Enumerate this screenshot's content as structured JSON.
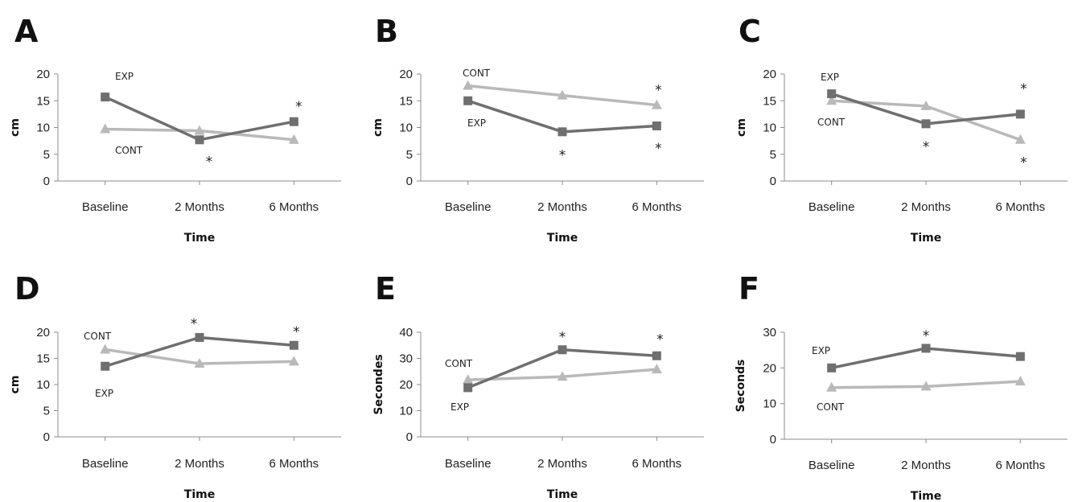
{
  "colors": {
    "EXP": "#6f6f6f",
    "CONT": "#b9b9b9",
    "axis": "#8c8c8c"
  },
  "chart_data": [
    {
      "panel": "A",
      "type": "line",
      "categories": [
        "Baseline",
        "2 Months",
        "6 Months"
      ],
      "xlabel": "Time",
      "ylabel": "cm",
      "ylim": [
        0,
        20
      ],
      "yticks": [
        0,
        5,
        10,
        15,
        20
      ],
      "grid": false,
      "series": [
        {
          "name": "EXP",
          "marker": "square",
          "values": [
            15.7,
            7.7,
            11.1
          ]
        },
        {
          "name": "CONT",
          "marker": "triangle",
          "values": [
            9.7,
            9.4,
            7.7
          ]
        }
      ],
      "annotations": [
        {
          "text": "*",
          "category": "2 Months",
          "y": 4.0
        },
        {
          "text": "*",
          "category": "6 Months",
          "y": 14.3
        }
      ]
    },
    {
      "panel": "B",
      "type": "line",
      "categories": [
        "Baseline",
        "2 Months",
        "6 Months"
      ],
      "xlabel": "Time",
      "ylabel": "cm",
      "ylim": [
        0,
        20
      ],
      "yticks": [
        0,
        5,
        10,
        15,
        20
      ],
      "grid": false,
      "series": [
        {
          "name": "EXP",
          "marker": "square",
          "values": [
            15.0,
            9.2,
            10.3
          ]
        },
        {
          "name": "CONT",
          "marker": "triangle",
          "values": [
            17.8,
            16.0,
            14.2
          ]
        }
      ],
      "annotations": [
        {
          "text": "*",
          "category": "2 Months",
          "y": 5.2
        },
        {
          "text": "*",
          "category": "6 Months",
          "y": 6.5
        },
        {
          "text": "*",
          "category": "6 Months",
          "y": 17.4
        }
      ]
    },
    {
      "panel": "C",
      "type": "line",
      "categories": [
        "Baseline",
        "2 Months",
        "6 Months"
      ],
      "xlabel": "Time",
      "ylabel": "cm",
      "ylim": [
        0,
        20
      ],
      "yticks": [
        0,
        5,
        10,
        15,
        20
      ],
      "grid": false,
      "series": [
        {
          "name": "EXP",
          "marker": "square",
          "values": [
            16.3,
            10.7,
            12.5
          ]
        },
        {
          "name": "CONT",
          "marker": "triangle",
          "values": [
            15.0,
            14.0,
            7.7
          ]
        }
      ],
      "annotations": [
        {
          "text": "*",
          "category": "2 Months",
          "y": 6.8
        },
        {
          "text": "*",
          "category": "6 Months",
          "y": 17.6
        },
        {
          "text": "*",
          "category": "6 Months",
          "y": 3.8
        }
      ]
    },
    {
      "panel": "D",
      "type": "line",
      "categories": [
        "Baseline",
        "2 Months",
        "6 Months"
      ],
      "xlabel": "Time",
      "ylabel": "cm",
      "ylim": [
        0,
        20
      ],
      "yticks": [
        0,
        5,
        10,
        15,
        20
      ],
      "grid": false,
      "series": [
        {
          "name": "EXP",
          "marker": "square",
          "values": [
            13.5,
            19.0,
            17.5
          ]
        },
        {
          "name": "CONT",
          "marker": "triangle",
          "values": [
            16.7,
            14.0,
            14.4
          ]
        }
      ],
      "annotations": [
        {
          "text": "*",
          "category": "2 Months",
          "y": 22.0
        },
        {
          "text": "*",
          "category": "6 Months",
          "y": 20.5
        }
      ]
    },
    {
      "panel": "E",
      "type": "line",
      "categories": [
        "Baseline",
        "2 Months",
        "6 Months"
      ],
      "xlabel": "Time",
      "ylabel": "Secondes",
      "ylim": [
        0,
        40
      ],
      "yticks": [
        0,
        10,
        20,
        30,
        40
      ],
      "grid": false,
      "series": [
        {
          "name": "EXP",
          "marker": "square",
          "values": [
            18.8,
            33.3,
            31.0
          ]
        },
        {
          "name": "CONT",
          "marker": "triangle",
          "values": [
            21.8,
            23.0,
            25.8
          ]
        }
      ],
      "annotations": [
        {
          "text": "*",
          "category": "2 Months",
          "y": 39.0
        },
        {
          "text": "*",
          "category": "6 Months",
          "y": 38.0
        }
      ]
    },
    {
      "panel": "F",
      "type": "line",
      "categories": [
        "Baseline",
        "2 Months",
        "6 Months"
      ],
      "xlabel": "Time",
      "ylabel": "Seconds",
      "ylim": [
        0,
        30
      ],
      "yticks": [
        0,
        10,
        20,
        30
      ],
      "grid": false,
      "series": [
        {
          "name": "EXP",
          "marker": "square",
          "values": [
            20.0,
            25.5,
            23.2
          ]
        },
        {
          "name": "CONT",
          "marker": "triangle",
          "values": [
            14.5,
            14.8,
            16.2
          ]
        }
      ],
      "annotations": [
        {
          "text": "*",
          "category": "2 Months",
          "y": 29.5
        }
      ]
    }
  ]
}
